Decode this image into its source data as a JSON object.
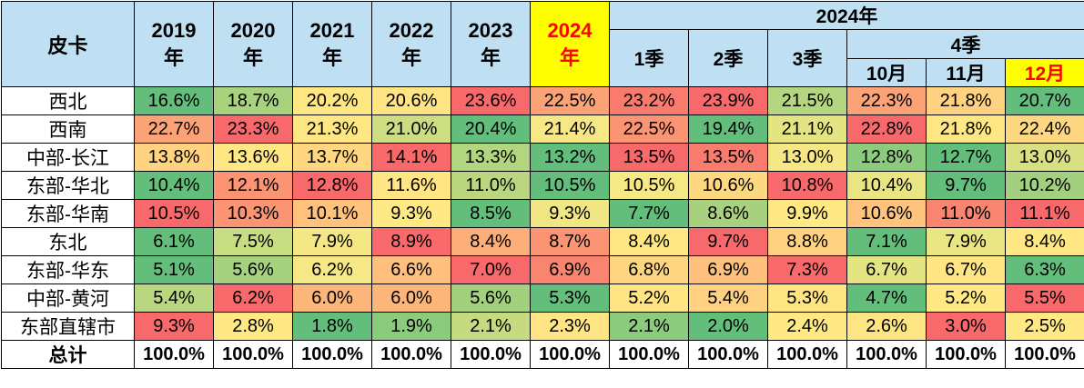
{
  "header": {
    "corner": "皮卡",
    "years": [
      "2019\n年",
      "2020\n年",
      "2021\n年",
      "2022\n年",
      "2023\n年",
      "2024\n年"
    ],
    "group_2024": "2024年",
    "quarters": [
      "1季",
      "2季",
      "3季"
    ],
    "q4": "4季",
    "months": [
      "10月",
      "11月",
      "12月"
    ]
  },
  "rows": [
    {
      "region": "西北",
      "values": [
        "16.6%",
        "18.7%",
        "20.2%",
        "20.6%",
        "23.6%",
        "22.5%",
        "23.2%",
        "23.9%",
        "21.5%",
        "22.3%",
        "21.8%",
        "20.7%"
      ],
      "colors": [
        "#63be7b",
        "#a9d27f",
        "#ffe884",
        "#ffe483",
        "#f8696b",
        "#fba276",
        "#f97b6e",
        "#f8696b",
        "#b5d680",
        "#fba276",
        "#fed280",
        "#63be7b"
      ]
    },
    {
      "region": "西南",
      "values": [
        "22.7%",
        "23.3%",
        "21.3%",
        "21.0%",
        "20.4%",
        "21.4%",
        "22.5%",
        "19.4%",
        "21.1%",
        "22.8%",
        "21.8%",
        "22.4%"
      ],
      "colors": [
        "#fba276",
        "#f8696b",
        "#ffe884",
        "#cddd82",
        "#63be7b",
        "#f8e885",
        "#fa9473",
        "#63be7b",
        "#e5e483",
        "#f8696b",
        "#ffe884",
        "#fed880"
      ]
    },
    {
      "region": "中部-长江",
      "values": [
        "13.8%",
        "13.6%",
        "13.7%",
        "14.1%",
        "13.3%",
        "13.2%",
        "13.5%",
        "13.5%",
        "13.0%",
        "12.8%",
        "12.7%",
        "13.0%"
      ],
      "colors": [
        "#ffd380",
        "#ffe784",
        "#ffd780",
        "#f8696b",
        "#b2d580",
        "#63be7b",
        "#f8696b",
        "#f97c6f",
        "#f5e884",
        "#8bcb7e",
        "#63be7b",
        "#d9e082"
      ]
    },
    {
      "region": "东部-华北",
      "values": [
        "10.4%",
        "12.1%",
        "12.8%",
        "11.6%",
        "11.0%",
        "10.5%",
        "10.5%",
        "10.6%",
        "10.8%",
        "10.4%",
        "9.7%",
        "10.2%"
      ],
      "colors": [
        "#63be7b",
        "#fa9473",
        "#f8696b",
        "#ffe583",
        "#bad780",
        "#63be7b",
        "#f6e884",
        "#fed880",
        "#f8696b",
        "#eae583",
        "#63be7b",
        "#a2d07f"
      ]
    },
    {
      "region": "东部-华南",
      "values": [
        "10.5%",
        "10.3%",
        "10.1%",
        "9.3%",
        "8.5%",
        "9.3%",
        "7.7%",
        "8.6%",
        "9.9%",
        "10.6%",
        "11.0%",
        "11.1%"
      ],
      "colors": [
        "#f8696b",
        "#fa9473",
        "#fec27d",
        "#ffe984",
        "#63be7b",
        "#f0e784",
        "#63be7b",
        "#a8d17f",
        "#ffe984",
        "#fec47d",
        "#f98570",
        "#f8696b"
      ]
    },
    {
      "region": "东北",
      "values": [
        "6.1%",
        "7.5%",
        "7.9%",
        "8.9%",
        "8.4%",
        "8.7%",
        "8.4%",
        "9.7%",
        "8.8%",
        "7.1%",
        "7.9%",
        "8.4%"
      ],
      "colors": [
        "#63be7b",
        "#c8dc81",
        "#f5e884",
        "#f8696b",
        "#fcaf79",
        "#fa9473",
        "#ffe884",
        "#f8696b",
        "#fed280",
        "#63be7b",
        "#e9e583",
        "#ffe783"
      ]
    },
    {
      "region": "东部-华东",
      "values": [
        "5.1%",
        "5.6%",
        "6.2%",
        "6.6%",
        "7.0%",
        "6.9%",
        "6.8%",
        "6.9%",
        "7.3%",
        "6.7%",
        "6.7%",
        "6.3%"
      ],
      "colors": [
        "#63be7b",
        "#a6d17f",
        "#f6e884",
        "#fec07c",
        "#f8696b",
        "#f98570",
        "#fed680",
        "#fec07c",
        "#f8696b",
        "#e4e483",
        "#ffe583",
        "#63be7b"
      ]
    },
    {
      "region": "中部-黄河",
      "values": [
        "5.4%",
        "6.2%",
        "6.0%",
        "6.0%",
        "5.6%",
        "5.3%",
        "5.2%",
        "5.4%",
        "5.3%",
        "4.7%",
        "5.2%",
        "5.5%"
      ],
      "colors": [
        "#b8d780",
        "#f8696b",
        "#fcb67a",
        "#fcb67a",
        "#a2d07f",
        "#63be7b",
        "#ffe583",
        "#fed280",
        "#fee583",
        "#63be7b",
        "#ffe984",
        "#f8696b"
      ]
    },
    {
      "region": "东部直辖市",
      "values": [
        "9.3%",
        "2.8%",
        "1.8%",
        "1.9%",
        "2.1%",
        "2.3%",
        "2.1%",
        "2.0%",
        "2.4%",
        "2.6%",
        "3.0%",
        "2.5%"
      ],
      "colors": [
        "#f8696b",
        "#ffe984",
        "#63be7b",
        "#8bcb7e",
        "#c6db81",
        "#ffe583",
        "#8bcb7e",
        "#63be7b",
        "#ffe984",
        "#fee583",
        "#f8696b",
        "#ffe984"
      ]
    }
  ],
  "total": {
    "label": "总计",
    "values": [
      "100.0%",
      "100.0%",
      "100.0%",
      "100.0%",
      "100.0%",
      "100.0%",
      "100.0%",
      "100.0%",
      "100.0%",
      "100.0%",
      "100.0%",
      "100.0%"
    ]
  }
}
